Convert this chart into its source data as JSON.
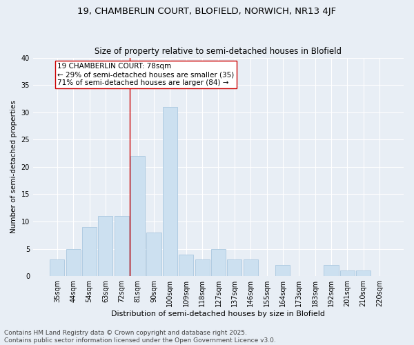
{
  "title_line1": "19, CHAMBERLIN COURT, BLOFIELD, NORWICH, NR13 4JF",
  "title_line2": "Size of property relative to semi-detached houses in Blofield",
  "xlabel": "Distribution of semi-detached houses by size in Blofield",
  "ylabel": "Number of semi-detached properties",
  "categories": [
    "35sqm",
    "44sqm",
    "54sqm",
    "63sqm",
    "72sqm",
    "81sqm",
    "90sqm",
    "100sqm",
    "109sqm",
    "118sqm",
    "127sqm",
    "137sqm",
    "146sqm",
    "155sqm",
    "164sqm",
    "173sqm",
    "183sqm",
    "192sqm",
    "201sqm",
    "210sqm",
    "220sqm"
  ],
  "values": [
    3,
    5,
    9,
    11,
    11,
    22,
    8,
    31,
    4,
    3,
    5,
    3,
    3,
    0,
    2,
    0,
    0,
    2,
    1,
    1,
    0
  ],
  "bar_color": "#cce0f0",
  "bar_edge_color": "#aac8e0",
  "vline_x_index": 5,
  "vline_color": "#cc0000",
  "annotation_text": "19 CHAMBERLIN COURT: 78sqm\n← 29% of semi-detached houses are smaller (35)\n71% of semi-detached houses are larger (84) →",
  "annotation_box_color": "#ffffff",
  "annotation_box_edge": "#cc0000",
  "ylim": [
    0,
    40
  ],
  "yticks": [
    0,
    5,
    10,
    15,
    20,
    25,
    30,
    35,
    40
  ],
  "background_color": "#e8eef5",
  "grid_color": "#ffffff",
  "footnote": "Contains HM Land Registry data © Crown copyright and database right 2025.\nContains public sector information licensed under the Open Government Licence v3.0.",
  "title_fontsize": 9.5,
  "subtitle_fontsize": 8.5,
  "xlabel_fontsize": 8,
  "ylabel_fontsize": 7.5,
  "tick_fontsize": 7,
  "annotation_fontsize": 7.5,
  "footnote_fontsize": 6.5
}
